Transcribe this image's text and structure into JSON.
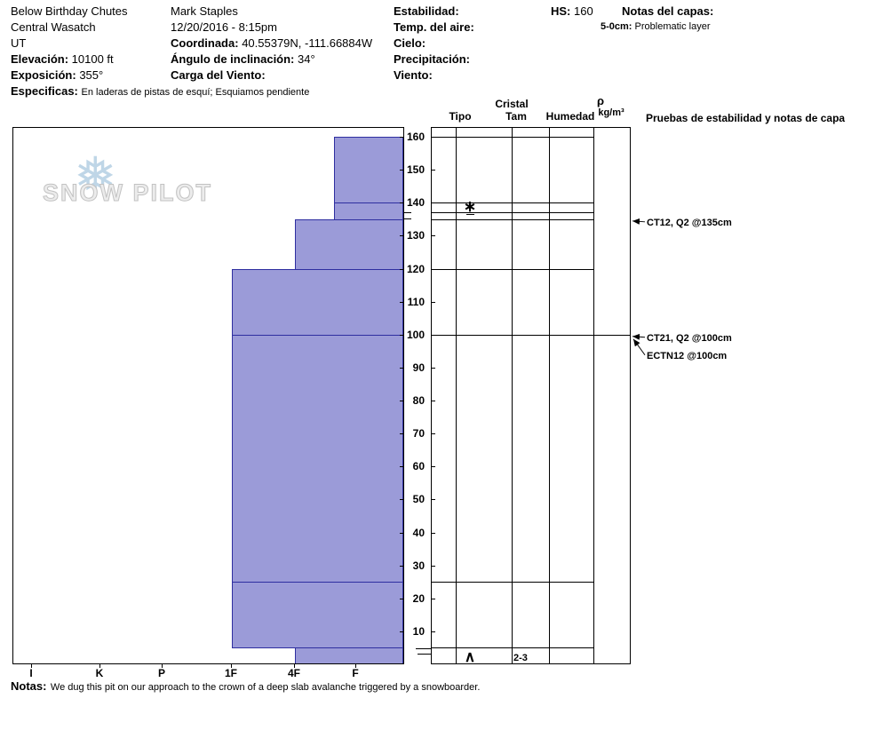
{
  "header": {
    "pit_name": "Below Birthday Chutes",
    "range": "Central Wasatch",
    "state": "UT",
    "elevation_label": "Elevación:",
    "elevation_value": "10100 ft",
    "aspect_label": "Exposición:",
    "aspect_value": "355°",
    "specifics_label": "Especificas:",
    "specifics_value": "En laderas de pistas de esquí; Esquiamos pendiente",
    "observer": "Mark Staples",
    "datetime": "12/20/2016 - 8:15pm",
    "coordinates_label": "Coordinada:",
    "coordinates_value": "40.55379N, -111.66884W",
    "slope_angle_label": "Ángulo de inclinación:",
    "slope_angle_value": "34°",
    "wind_loading_label": "Carga del Viento:",
    "stability_label": "Estabilidad:",
    "air_temp_label": "Temp. del aire:",
    "sky_label": "Cielo:",
    "precip_label": "Precipitación:",
    "wind_label": "Viento:",
    "hs_label": "HS:",
    "hs_value": "160",
    "layer_notes_label": "Notas del capas:",
    "layer_note_depth": "5-0cm:",
    "layer_note_text": "Problematic layer"
  },
  "chart_data": {
    "type": "bar",
    "description": "Snow pit hardness profile, depth (cm) vs hand hardness",
    "watermark": "SNOW PILOT",
    "y_axis": {
      "unit": "cm",
      "range": [
        0,
        160
      ],
      "tick_step": 10
    },
    "x_axis": {
      "categories": [
        "I",
        "K",
        "P",
        "1F",
        "4F",
        "F"
      ]
    },
    "layers": [
      {
        "top_cm": 160,
        "bottom_cm": 140,
        "hardness": "F+"
      },
      {
        "top_cm": 140,
        "bottom_cm": 135,
        "hardness": "F+"
      },
      {
        "top_cm": 135,
        "bottom_cm": 120,
        "hardness": "4F"
      },
      {
        "top_cm": 120,
        "bottom_cm": 100,
        "hardness": "1F"
      },
      {
        "top_cm": 100,
        "bottom_cm": 25,
        "hardness": "1F"
      },
      {
        "top_cm": 25,
        "bottom_cm": 5,
        "hardness": "1F"
      },
      {
        "top_cm": 5,
        "bottom_cm": 0,
        "hardness": "4F"
      }
    ],
    "row_lines_cm": [
      160,
      140,
      137,
      135,
      120,
      100,
      25,
      5
    ],
    "crystals": [
      {
        "depth_cm": 138.5,
        "symbol": "∗",
        "underline": true,
        "size": ""
      },
      {
        "depth_cm": 2,
        "symbol": "∧",
        "underline": false,
        "size": "2-3"
      }
    ],
    "stability_tests": [
      {
        "text": "CT12, Q2 @135cm",
        "depth_cm": 135,
        "row": 0
      },
      {
        "text": "CT21, Q2 @100cm",
        "depth_cm": 100,
        "row": 0
      },
      {
        "text": "ECTN12 @100cm",
        "depth_cm": 100,
        "row": 1
      }
    ],
    "columns": {
      "cristal": "Cristal",
      "tipo": "Tipo",
      "tam": "Tam",
      "humedad": "Humedad",
      "rho": "ρ",
      "rho_unit": "kg/m³",
      "tests_header": "Pruebas de estabilidad y notas de capa"
    }
  },
  "notes": {
    "label": "Notas:",
    "text": "We dug this pit on our approach to the crown of a deep slab avalanche triggered by a snowboarder."
  }
}
